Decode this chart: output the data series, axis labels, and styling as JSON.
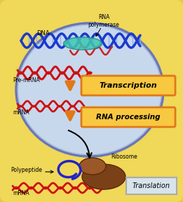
{
  "bg_color": "#e8c840",
  "cell_color": "#f5e070",
  "nucleus_color": "#c8d8ec",
  "nucleus_border": "#6878b8",
  "fig_width": 2.61,
  "fig_height": 2.88,
  "dpi": 100,
  "labels": {
    "DNA": "DNA",
    "RNA_polymerase": "RNA\npolymerase",
    "Pre_mRNA": "Pre-mRNA",
    "mRNA_top": "mRNA",
    "mRNA_bot": "mRNA",
    "Transcription": "Transcription",
    "RNA_processing": "RNA processing",
    "Translation": "Translation",
    "Polypeptide": "Polypeptide",
    "Ribosome": "Ribosome"
  },
  "arrow_color": "#e07818",
  "dna_blue": "#1a3acc",
  "dna_red": "#cc1111",
  "rna_poly_color": "#40c8b0",
  "polypeptide_color": "#2222cc",
  "ribosome_color": "#7a4018",
  "ribosome_dark": "#5a2808"
}
